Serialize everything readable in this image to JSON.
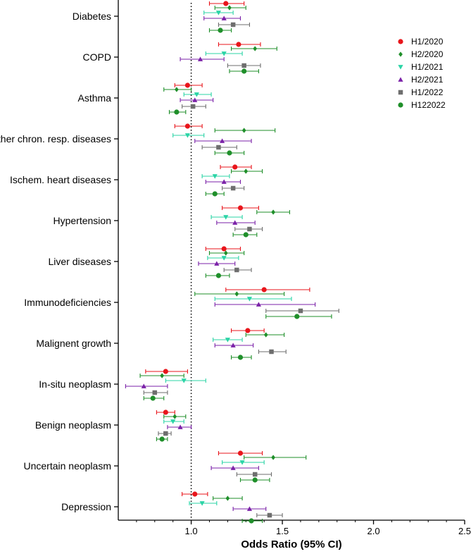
{
  "chart_data": {
    "type": "forest",
    "xlabel": "Odds Ratio (95% CI)",
    "xlim": [
      0.6,
      2.5
    ],
    "xticks": [
      "1.0",
      "1.5",
      "2.0",
      "2.5"
    ],
    "reference_line": 1.0,
    "legend_position": "top-right",
    "categories": [
      "Diabetes",
      "COPD",
      "Asthma",
      "Other chron. resp. diseases",
      "Ischem. heart diseases",
      "Hypertension",
      "Liver diseases",
      "Immunodeficiencies",
      "Malignent growth",
      "In-situ neoplasm",
      "Benign neoplasm",
      "Uncertain neoplasm",
      "Depression"
    ],
    "series": [
      {
        "name": "H1/2020",
        "color": "#e8151b",
        "marker": "circle",
        "points": [
          {
            "or": 1.19,
            "lo": 1.1,
            "hi": 1.29
          },
          {
            "or": 1.26,
            "lo": 1.15,
            "hi": 1.38
          },
          {
            "or": 0.98,
            "lo": 0.91,
            "hi": 1.06
          },
          {
            "or": 0.98,
            "lo": 0.91,
            "hi": 1.06
          },
          {
            "or": 1.24,
            "lo": 1.16,
            "hi": 1.33
          },
          {
            "or": 1.27,
            "lo": 1.17,
            "hi": 1.37
          },
          {
            "or": 1.18,
            "lo": 1.08,
            "hi": 1.27
          },
          {
            "or": 1.4,
            "lo": 1.19,
            "hi": 1.65
          },
          {
            "or": 1.31,
            "lo": 1.22,
            "hi": 1.4
          },
          {
            "or": 0.86,
            "lo": 0.75,
            "hi": 0.98
          },
          {
            "or": 0.86,
            "lo": 0.81,
            "hi": 0.91
          },
          {
            "or": 1.27,
            "lo": 1.15,
            "hi": 1.39
          },
          {
            "or": 1.02,
            "lo": 0.95,
            "hi": 1.09
          }
        ]
      },
      {
        "name": "H2/2020",
        "color": "#1f8f2a",
        "marker": "diamond",
        "points": [
          {
            "or": 1.21,
            "lo": 1.13,
            "hi": 1.3
          },
          {
            "or": 1.35,
            "lo": 1.22,
            "hi": 1.47
          },
          {
            "or": 0.92,
            "lo": 0.85,
            "hi": 1.0
          },
          {
            "or": 1.29,
            "lo": 1.13,
            "hi": 1.46
          },
          {
            "or": 1.3,
            "lo": 1.22,
            "hi": 1.39
          },
          {
            "or": 1.45,
            "lo": 1.36,
            "hi": 1.54
          },
          {
            "or": 1.19,
            "lo": 1.1,
            "hi": 1.29
          },
          {
            "or": 1.25,
            "lo": 1.02,
            "hi": 1.51
          },
          {
            "or": 1.41,
            "lo": 1.3,
            "hi": 1.51
          },
          {
            "or": 0.84,
            "lo": 0.72,
            "hi": 0.96
          },
          {
            "or": 0.91,
            "lo": 0.85,
            "hi": 0.97
          },
          {
            "or": 1.45,
            "lo": 1.29,
            "hi": 1.63
          },
          {
            "or": 1.2,
            "lo": 1.12,
            "hi": 1.28
          }
        ]
      },
      {
        "name": "H1/2021",
        "color": "#2bd4a6",
        "marker": "triangle-down",
        "points": [
          {
            "or": 1.15,
            "lo": 1.07,
            "hi": 1.23
          },
          {
            "or": 1.18,
            "lo": 1.08,
            "hi": 1.28
          },
          {
            "or": 1.03,
            "lo": 0.96,
            "hi": 1.11
          },
          {
            "or": 0.98,
            "lo": 0.9,
            "hi": 1.07
          },
          {
            "or": 1.13,
            "lo": 1.06,
            "hi": 1.21
          },
          {
            "or": 1.19,
            "lo": 1.11,
            "hi": 1.28
          },
          {
            "or": 1.18,
            "lo": 1.09,
            "hi": 1.26
          },
          {
            "or": 1.32,
            "lo": 1.13,
            "hi": 1.55
          },
          {
            "or": 1.2,
            "lo": 1.12,
            "hi": 1.28
          },
          {
            "or": 0.96,
            "lo": 0.86,
            "hi": 1.08
          },
          {
            "or": 0.9,
            "lo": 0.85,
            "hi": 0.96
          },
          {
            "or": 1.28,
            "lo": 1.17,
            "hi": 1.4
          },
          {
            "or": 1.06,
            "lo": 0.99,
            "hi": 1.14
          }
        ]
      },
      {
        "name": "H2/2021",
        "color": "#7b22a8",
        "marker": "triangle-up",
        "points": [
          {
            "or": 1.18,
            "lo": 1.07,
            "hi": 1.27
          },
          {
            "or": 1.05,
            "lo": 0.94,
            "hi": 1.18
          },
          {
            "or": 1.02,
            "lo": 0.94,
            "hi": 1.12
          },
          {
            "or": 1.17,
            "lo": 1.02,
            "hi": 1.33
          },
          {
            "or": 1.18,
            "lo": 1.08,
            "hi": 1.27
          },
          {
            "or": 1.24,
            "lo": 1.14,
            "hi": 1.35
          },
          {
            "or": 1.14,
            "lo": 1.04,
            "hi": 1.24
          },
          {
            "or": 1.37,
            "lo": 1.13,
            "hi": 1.68
          },
          {
            "or": 1.23,
            "lo": 1.13,
            "hi": 1.34
          },
          {
            "or": 0.74,
            "lo": 0.64,
            "hi": 0.87
          },
          {
            "or": 0.94,
            "lo": 0.87,
            "hi": 1.0
          },
          {
            "or": 1.23,
            "lo": 1.11,
            "hi": 1.37
          },
          {
            "or": 1.32,
            "lo": 1.23,
            "hi": 1.41
          }
        ]
      },
      {
        "name": "H1/2022",
        "color": "#6e6e6e",
        "marker": "square",
        "points": [
          {
            "or": 1.23,
            "lo": 1.15,
            "hi": 1.32
          },
          {
            "or": 1.29,
            "lo": 1.2,
            "hi": 1.38
          },
          {
            "or": 1.01,
            "lo": 0.95,
            "hi": 1.08
          },
          {
            "or": 1.15,
            "lo": 1.06,
            "hi": 1.25
          },
          {
            "or": 1.23,
            "lo": 1.17,
            "hi": 1.29
          },
          {
            "or": 1.32,
            "lo": 1.24,
            "hi": 1.39
          },
          {
            "or": 1.25,
            "lo": 1.18,
            "hi": 1.33
          },
          {
            "or": 1.6,
            "lo": 1.41,
            "hi": 1.81
          },
          {
            "or": 1.44,
            "lo": 1.37,
            "hi": 1.52
          },
          {
            "or": 0.8,
            "lo": 0.74,
            "hi": 0.87
          },
          {
            "or": 0.86,
            "lo": 0.82,
            "hi": 0.89
          },
          {
            "or": 1.35,
            "lo": 1.25,
            "hi": 1.44
          },
          {
            "or": 1.43,
            "lo": 1.36,
            "hi": 1.5
          }
        ]
      },
      {
        "name": "H122022",
        "color": "#1f8f2a",
        "marker": "circle",
        "points": [
          {
            "or": 1.16,
            "lo": 1.1,
            "hi": 1.22
          },
          {
            "or": 1.29,
            "lo": 1.21,
            "hi": 1.37
          },
          {
            "or": 0.92,
            "lo": 0.88,
            "hi": 0.97
          },
          {
            "or": 1.21,
            "lo": 1.13,
            "hi": 1.29
          },
          {
            "or": 1.13,
            "lo": 1.08,
            "hi": 1.18
          },
          {
            "or": 1.3,
            "lo": 1.23,
            "hi": 1.36
          },
          {
            "or": 1.15,
            "lo": 1.08,
            "hi": 1.21
          },
          {
            "or": 1.58,
            "lo": 1.41,
            "hi": 1.77
          },
          {
            "or": 1.27,
            "lo": 1.22,
            "hi": 1.33
          },
          {
            "or": 0.79,
            "lo": 0.74,
            "hi": 0.85
          },
          {
            "or": 0.84,
            "lo": 0.81,
            "hi": 0.87
          },
          {
            "or": 1.35,
            "lo": 1.27,
            "hi": 1.43
          },
          {
            "or": 1.33,
            "lo": 1.28,
            "hi": 1.39
          }
        ]
      }
    ]
  }
}
